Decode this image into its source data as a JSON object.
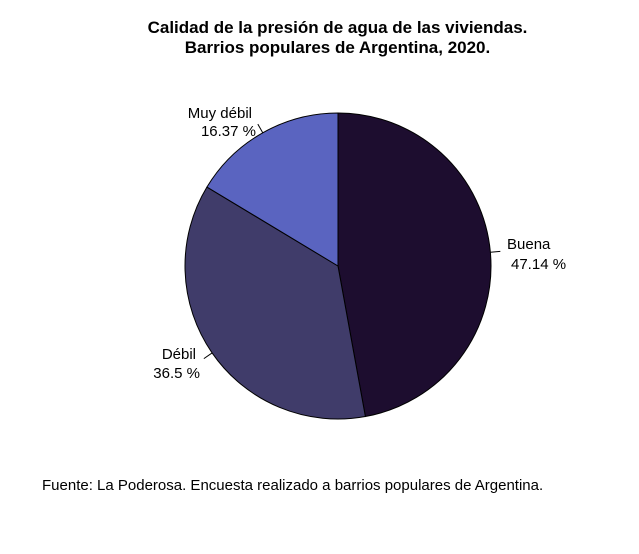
{
  "chart_data": {
    "type": "pie",
    "title": "Calidad de la presión de agua de las viviendas.",
    "subtitle": "Barrios populares de Argentina, 2020.",
    "slices": [
      {
        "label": "Buena",
        "percent_label": "47.14 %",
        "value": 47.14,
        "color": "#1d0d2f"
      },
      {
        "label": "Débil",
        "percent_label": "36.5 %",
        "value": 36.5,
        "color": "#403c6a"
      },
      {
        "label": "Muy débil",
        "percent_label": "16.37 %",
        "value": 16.37,
        "color": "#5a64c0"
      }
    ],
    "source": "Fuente: La Poderosa. Encuesta realizado a barrios populares de Argentina."
  }
}
